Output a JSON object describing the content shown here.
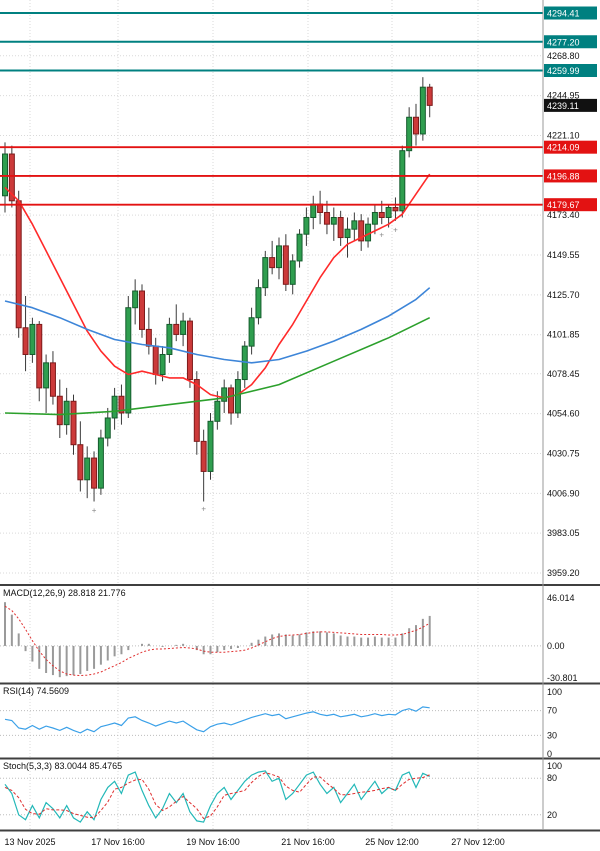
{
  "chart_data": {
    "type": "candlestick_with_indicators",
    "price_axis": {
      "ticks": [
        "4268.80",
        "4244.95",
        "4221.10",
        "4173.40",
        "4149.55",
        "4125.70",
        "4101.85",
        "4078.45",
        "4054.60",
        "4030.75",
        "4006.90",
        "3983.05",
        "3959.20"
      ]
    },
    "horizontal_lines": {
      "resistance_teal": [
        {
          "price": 4294.41,
          "label": "4294.41"
        },
        {
          "price": 4277.2,
          "label": "4277.20"
        },
        {
          "price": 4259.99,
          "label": "4259.99"
        }
      ],
      "support_red": [
        {
          "price": 4214.09,
          "label": "4214.09"
        },
        {
          "price": 4196.88,
          "label": "4196.88"
        },
        {
          "price": 4179.67,
          "label": "4179.67"
        }
      ]
    },
    "current_price": {
      "value": 4239.11,
      "label": "4239.11"
    },
    "candles": [
      [
        4185,
        4217,
        4175,
        4210
      ],
      [
        4210,
        4215,
        4178,
        4182
      ],
      [
        4182,
        4188,
        4100,
        4106
      ],
      [
        4106,
        4125,
        4080,
        4090
      ],
      [
        4090,
        4112,
        4085,
        4108
      ],
      [
        4108,
        4110,
        4062,
        4070
      ],
      [
        4070,
        4090,
        4055,
        4085
      ],
      [
        4085,
        4092,
        4060,
        4065
      ],
      [
        4065,
        4075,
        4040,
        4048
      ],
      [
        4048,
        4070,
        4042,
        4062
      ],
      [
        4062,
        4066,
        4030,
        4036
      ],
      [
        4036,
        4050,
        4008,
        4015
      ],
      [
        4015,
        4035,
        4004,
        4028
      ],
      [
        4028,
        4032,
        4002,
        4010
      ],
      [
        4010,
        4045,
        4006,
        4040
      ],
      [
        4040,
        4058,
        4035,
        4052
      ],
      [
        4052,
        4070,
        4045,
        4065
      ],
      [
        4065,
        4072,
        4048,
        4055
      ],
      [
        4055,
        4125,
        4052,
        4118
      ],
      [
        4118,
        4135,
        4108,
        4128
      ],
      [
        4128,
        4132,
        4100,
        4105
      ],
      [
        4105,
        4118,
        4090,
        4095
      ],
      [
        4095,
        4100,
        4072,
        4078
      ],
      [
        4078,
        4095,
        4074,
        4090
      ],
      [
        4090,
        4112,
        4085,
        4108
      ],
      [
        4108,
        4120,
        4098,
        4102
      ],
      [
        4102,
        4115,
        4095,
        4110
      ],
      [
        4110,
        4112,
        4070,
        4075
      ],
      [
        4075,
        4080,
        4030,
        4038
      ],
      [
        4038,
        4045,
        4002,
        4020
      ],
      [
        4020,
        4055,
        4015,
        4050
      ],
      [
        4050,
        4068,
        4045,
        4062
      ],
      [
        4062,
        4075,
        4055,
        4070
      ],
      [
        4070,
        4072,
        4048,
        4055
      ],
      [
        4055,
        4080,
        4052,
        4075
      ],
      [
        4075,
        4098,
        4070,
        4095
      ],
      [
        4095,
        4118,
        4090,
        4112
      ],
      [
        4112,
        4135,
        4108,
        4130
      ],
      [
        4130,
        4152,
        4125,
        4148
      ],
      [
        4148,
        4158,
        4138,
        4142
      ],
      [
        4142,
        4160,
        4135,
        4155
      ],
      [
        4155,
        4162,
        4128,
        4132
      ],
      [
        4132,
        4150,
        4126,
        4146
      ],
      [
        4146,
        4165,
        4142,
        4162
      ],
      [
        4162,
        4178,
        4155,
        4172
      ],
      [
        4172,
        4185,
        4165,
        4180
      ],
      [
        4180,
        4188,
        4168,
        4175
      ],
      [
        4175,
        4182,
        4162,
        4168
      ],
      [
        4168,
        4178,
        4158,
        4172
      ],
      [
        4172,
        4176,
        4155,
        4160
      ],
      [
        4160,
        4172,
        4148,
        4165
      ],
      [
        4165,
        4175,
        4158,
        4170
      ],
      [
        4170,
        4174,
        4152,
        4158
      ],
      [
        4158,
        4172,
        4154,
        4168
      ],
      [
        4168,
        4180,
        4162,
        4175
      ],
      [
        4175,
        4182,
        4168,
        4172
      ],
      [
        4172,
        4180,
        4166,
        4178
      ],
      [
        4178,
        4184,
        4170,
        4176
      ],
      [
        4176,
        4215,
        4172,
        4212
      ],
      [
        4212,
        4238,
        4208,
        4232
      ],
      [
        4232,
        4240,
        4215,
        4222
      ],
      [
        4222,
        4256,
        4218,
        4250
      ],
      [
        4250,
        4252,
        4232,
        4239.11
      ]
    ],
    "markers": [
      {
        "bar": 13,
        "price": 3995
      },
      {
        "bar": 29,
        "price": 3996
      },
      {
        "bar": 55,
        "price": 4160
      },
      {
        "bar": 57,
        "price": 4163
      }
    ],
    "moving_averages": [
      {
        "name": "ma-fast-red",
        "color_key": "ma_red",
        "points": [
          [
            0,
            4190
          ],
          [
            2,
            4182
          ],
          [
            4,
            4168
          ],
          [
            6,
            4152
          ],
          [
            8,
            4136
          ],
          [
            10,
            4120
          ],
          [
            12,
            4104
          ],
          [
            14,
            4092
          ],
          [
            16,
            4083
          ],
          [
            18,
            4078
          ],
          [
            20,
            4080
          ],
          [
            22,
            4078
          ],
          [
            24,
            4076
          ],
          [
            26,
            4076
          ],
          [
            28,
            4072
          ],
          [
            30,
            4066
          ],
          [
            32,
            4064
          ],
          [
            34,
            4066
          ],
          [
            36,
            4072
          ],
          [
            38,
            4082
          ],
          [
            40,
            4096
          ],
          [
            42,
            4108
          ],
          [
            44,
            4122
          ],
          [
            46,
            4136
          ],
          [
            48,
            4148
          ],
          [
            50,
            4156
          ],
          [
            52,
            4160
          ],
          [
            54,
            4164
          ],
          [
            56,
            4168
          ],
          [
            58,
            4174
          ],
          [
            60,
            4186
          ],
          [
            62,
            4198
          ]
        ]
      },
      {
        "name": "ma-mid-blue",
        "color_key": "ma_blue",
        "points": [
          [
            0,
            4122
          ],
          [
            4,
            4118
          ],
          [
            8,
            4112
          ],
          [
            12,
            4105
          ],
          [
            16,
            4099
          ],
          [
            20,
            4096
          ],
          [
            24,
            4094
          ],
          [
            28,
            4090
          ],
          [
            32,
            4087
          ],
          [
            36,
            4085
          ],
          [
            40,
            4087
          ],
          [
            44,
            4092
          ],
          [
            48,
            4098
          ],
          [
            52,
            4105
          ],
          [
            56,
            4113
          ],
          [
            60,
            4123
          ],
          [
            62,
            4130
          ]
        ]
      },
      {
        "name": "ma-slow-green",
        "color_key": "ma_green",
        "points": [
          [
            0,
            4055
          ],
          [
            8,
            4054
          ],
          [
            16,
            4056
          ],
          [
            24,
            4060
          ],
          [
            32,
            4064
          ],
          [
            40,
            4072
          ],
          [
            48,
            4086
          ],
          [
            56,
            4100
          ],
          [
            62,
            4112
          ]
        ]
      }
    ],
    "indicators": {
      "macd": {
        "label": "MACD(12,26,9) 28.818 21.776",
        "axis_labels": [
          "46.014",
          "0.00",
          "-30.801"
        ],
        "histogram": [
          42,
          30,
          12,
          -5,
          -15,
          -22,
          -26,
          -28,
          -30,
          -29,
          -28,
          -27,
          -24,
          -22,
          -18,
          -14,
          -10,
          -8,
          -4,
          0,
          2,
          2,
          0,
          -1,
          0,
          1,
          2,
          0,
          -4,
          -8,
          -8,
          -6,
          -4,
          -3,
          -2,
          0,
          3,
          6,
          9,
          11,
          12,
          11,
          10,
          11,
          13,
          14,
          14,
          13,
          12,
          10,
          9,
          9,
          8,
          8,
          9,
          8,
          8,
          8,
          12,
          17,
          20,
          26,
          28.8
        ],
        "signal": [
          38,
          34,
          26,
          16,
          5,
          -5,
          -13,
          -19,
          -24,
          -27,
          -28,
          -28.5,
          -28,
          -27,
          -25,
          -22,
          -19,
          -16,
          -12,
          -9,
          -6,
          -4,
          -3,
          -3,
          -2.5,
          -2,
          -1.5,
          -2,
          -3,
          -5,
          -6,
          -6,
          -6,
          -5.5,
          -5,
          -4,
          -2,
          1,
          4,
          7,
          9,
          10,
          10.5,
          11,
          12,
          13,
          13.5,
          13.5,
          13,
          12.5,
          12,
          11.5,
          11,
          11,
          11,
          11,
          10.5,
          10.5,
          11,
          13,
          15,
          18,
          21.8
        ]
      },
      "rsi": {
        "label": "RSI(14) 74.5609",
        "axis_labels": [
          "100",
          "70",
          "30",
          "0"
        ],
        "levels": [
          70,
          30
        ],
        "values": [
          56,
          54,
          42,
          40,
          46,
          40,
          45,
          42,
          38,
          43,
          38,
          34,
          40,
          36,
          44,
          47,
          50,
          46,
          58,
          60,
          54,
          50,
          45,
          49,
          53,
          50,
          53,
          46,
          39,
          36,
          44,
          48,
          50,
          47,
          51,
          55,
          59,
          62,
          65,
          62,
          64,
          57,
          60,
          63,
          66,
          68,
          64,
          62,
          64,
          60,
          62,
          64,
          60,
          62,
          65,
          62,
          64,
          63,
          70,
          73,
          69,
          76,
          74.56
        ]
      },
      "stoch": {
        "label": "Stoch(5,3,3) 83.0044 85.4765",
        "axis_labels": [
          "100",
          "80",
          "20"
        ],
        "levels": [
          80,
          20
        ],
        "k": [
          70,
          55,
          20,
          12,
          35,
          15,
          40,
          30,
          15,
          35,
          15,
          8,
          25,
          12,
          45,
          65,
          75,
          55,
          85,
          90,
          60,
          35,
          15,
          30,
          55,
          40,
          55,
          25,
          10,
          8,
          35,
          55,
          65,
          45,
          60,
          75,
          85,
          90,
          92,
          75,
          80,
          45,
          55,
          70,
          85,
          90,
          70,
          55,
          65,
          40,
          55,
          70,
          45,
          60,
          75,
          55,
          65,
          60,
          85,
          90,
          65,
          88,
          83
        ],
        "d": [
          65,
          60,
          48,
          29,
          22,
          21,
          30,
          28,
          28,
          27,
          22,
          19,
          16,
          15,
          27,
          41,
          62,
          65,
          72,
          77,
          78,
          62,
          37,
          27,
          33,
          42,
          50,
          40,
          30,
          14,
          18,
          33,
          52,
          55,
          57,
          60,
          73,
          83,
          89,
          86,
          82,
          67,
          60,
          57,
          70,
          82,
          82,
          72,
          63,
          53,
          53,
          55,
          57,
          58,
          60,
          63,
          65,
          60,
          70,
          78,
          80,
          81,
          85.5
        ]
      }
    },
    "time_axis": {
      "labels": [
        "13 Nov 2025",
        "17 Nov 16:00",
        "19 Nov 16:00",
        "21 Nov 16:00",
        "25 Nov 12:00",
        "27 Nov 12:00"
      ]
    },
    "colors": {
      "background": "#ffffff",
      "grid": "#d9d9d9",
      "level_dotted": "#bdbdbd",
      "wick": "#3a3a3a",
      "bull_fill": "#2f9e4f",
      "bull_stroke": "#155c2d",
      "bear_fill": "#cc3a3a",
      "bear_stroke": "#7e1b1b",
      "teal_line": "#008080",
      "red_line": "#e31212",
      "current_badge": "#111111",
      "ma_red": "#ff2a2a",
      "ma_blue": "#3d85d8",
      "ma_green": "#2ca02c",
      "macd_hist": "#9a9a9a",
      "macd_signal": "#e03030",
      "rsi_line": "#3aa0e8",
      "stoch_k": "#23b8b8",
      "stoch_d": "#e03030",
      "axis_text": "#111111",
      "separator": "#3f3f3f"
    }
  }
}
